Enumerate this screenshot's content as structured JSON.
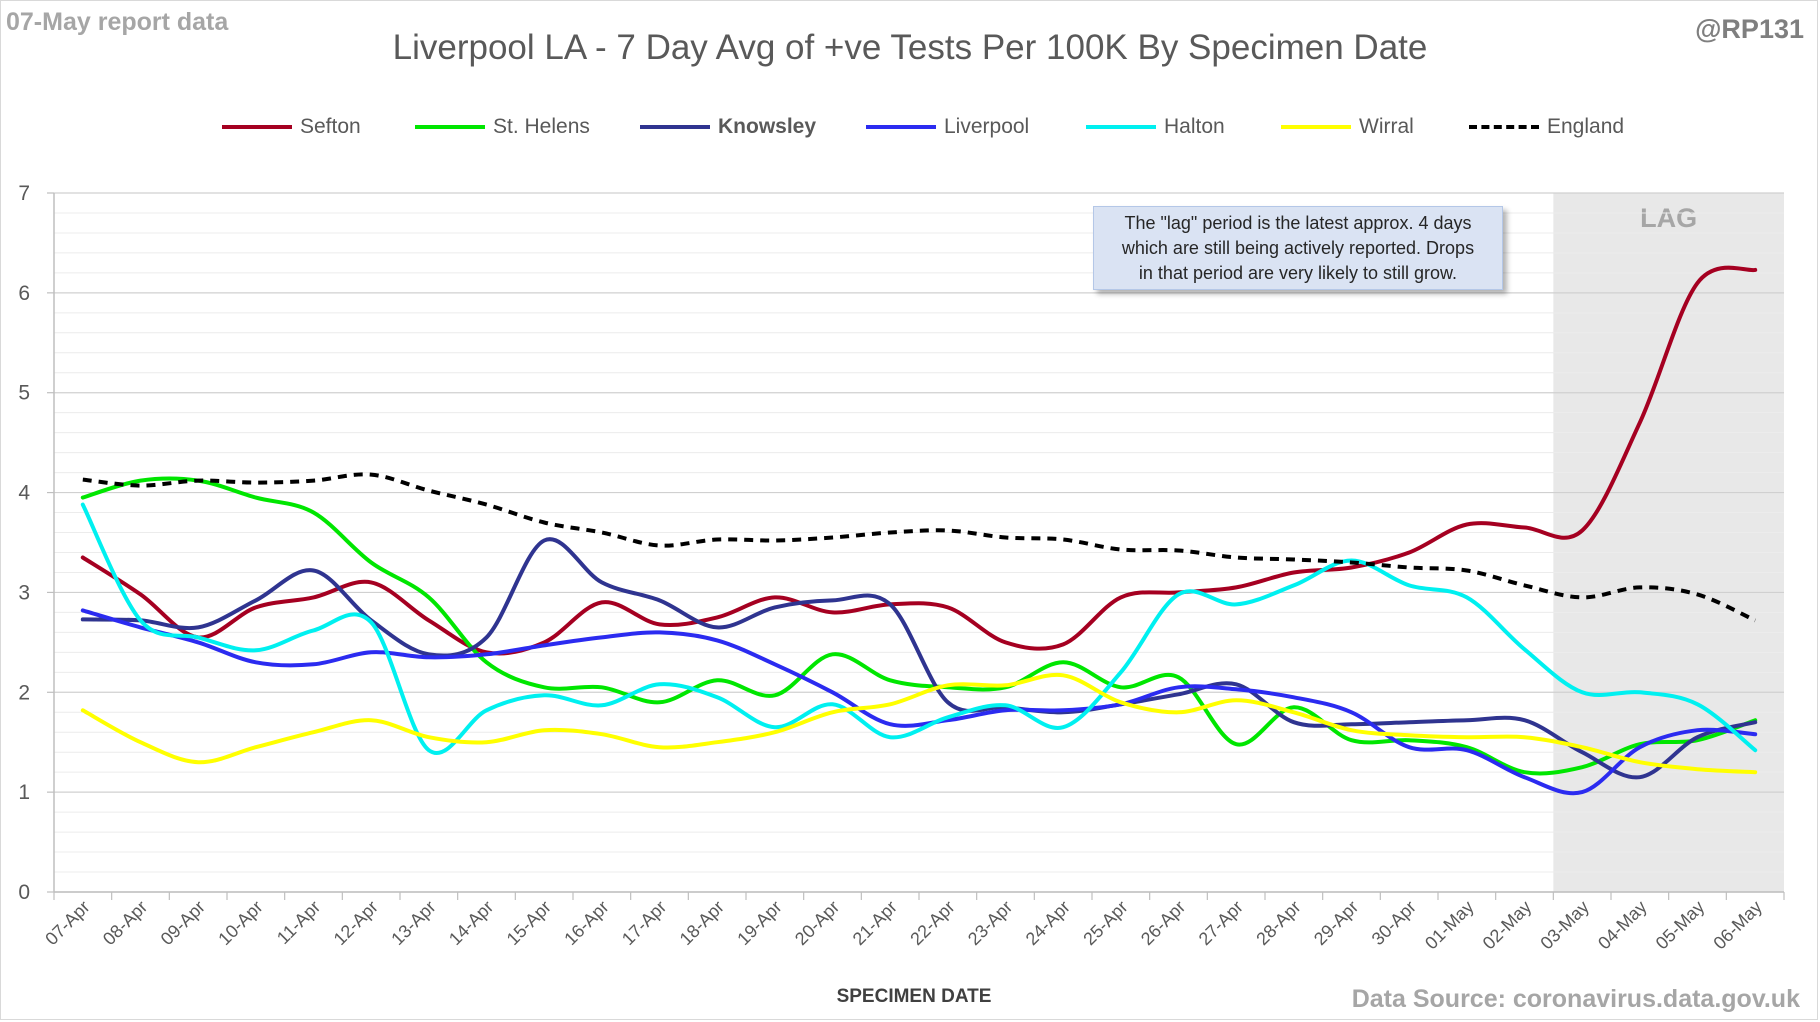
{
  "header": {
    "report_label": "07-May report data",
    "handle": "@RP131",
    "source": "Data Source: coronavirus.data.gov.uk"
  },
  "annotation": {
    "lines": [
      "The \"lag\" period is the latest approx. 4 days",
      "which are still being actively reported.  Drops",
      "in that period are very likely to still grow."
    ]
  },
  "chart_data": {
    "type": "line",
    "title": "Liverpool LA - 7 Day Avg of +ve Tests Per 100K By Specimen Date",
    "xlabel": "SPECIMEN DATE",
    "ylabel": "",
    "ylim": [
      0,
      7
    ],
    "yticks": [
      0,
      1,
      2,
      3,
      4,
      5,
      6,
      7
    ],
    "grid": true,
    "legend_position": "top",
    "shaded_region": {
      "label": "LAG",
      "from": "03-May",
      "to": "06-May",
      "color": "#e8e8e8"
    },
    "categories": [
      "07-Apr",
      "08-Apr",
      "09-Apr",
      "10-Apr",
      "11-Apr",
      "12-Apr",
      "13-Apr",
      "14-Apr",
      "15-Apr",
      "16-Apr",
      "17-Apr",
      "18-Apr",
      "19-Apr",
      "20-Apr",
      "21-Apr",
      "22-Apr",
      "23-Apr",
      "24-Apr",
      "25-Apr",
      "26-Apr",
      "27-Apr",
      "28-Apr",
      "29-Apr",
      "30-Apr",
      "01-May",
      "02-May",
      "03-May",
      "04-May",
      "05-May",
      "06-May"
    ],
    "series": [
      {
        "name": "Sefton",
        "color": "#a50021",
        "dash": false,
        "bold": false,
        "values": [
          3.35,
          2.98,
          2.55,
          2.85,
          2.95,
          3.1,
          2.72,
          2.4,
          2.5,
          2.9,
          2.68,
          2.75,
          2.95,
          2.8,
          2.88,
          2.85,
          2.5,
          2.48,
          2.95,
          3.0,
          3.05,
          3.2,
          3.25,
          3.4,
          3.68,
          3.65,
          3.62,
          4.7,
          6.1,
          6.23
        ]
      },
      {
        "name": "St. Helens",
        "color": "#00e600",
        "dash": false,
        "bold": false,
        "values": [
          3.95,
          4.12,
          4.12,
          3.95,
          3.8,
          3.3,
          2.95,
          2.3,
          2.05,
          2.05,
          1.9,
          2.12,
          1.97,
          2.38,
          2.12,
          2.05,
          2.05,
          2.3,
          2.05,
          2.15,
          1.48,
          1.85,
          1.52,
          1.52,
          1.45,
          1.2,
          1.25,
          1.48,
          1.52,
          1.72
        ]
      },
      {
        "name": "Knowsley",
        "color": "#2f3490",
        "dash": false,
        "bold": true,
        "values": [
          2.73,
          2.72,
          2.65,
          2.92,
          3.22,
          2.72,
          2.38,
          2.55,
          3.52,
          3.1,
          2.92,
          2.65,
          2.85,
          2.92,
          2.88,
          1.9,
          1.85,
          1.8,
          1.88,
          1.98,
          2.08,
          1.7,
          1.68,
          1.7,
          1.72,
          1.72,
          1.4,
          1.15,
          1.55,
          1.7
        ]
      },
      {
        "name": "Liverpool",
        "color": "#2b2bf0",
        "dash": false,
        "bold": false,
        "values": [
          2.82,
          2.65,
          2.5,
          2.3,
          2.28,
          2.4,
          2.35,
          2.38,
          2.47,
          2.55,
          2.6,
          2.52,
          2.28,
          2.0,
          1.68,
          1.72,
          1.82,
          1.82,
          1.88,
          2.05,
          2.03,
          1.95,
          1.8,
          1.45,
          1.42,
          1.15,
          1.0,
          1.45,
          1.62,
          1.58
        ]
      },
      {
        "name": "Halton",
        "color": "#00f0f0",
        "dash": false,
        "bold": false,
        "values": [
          3.88,
          2.72,
          2.55,
          2.42,
          2.62,
          2.7,
          1.42,
          1.82,
          1.97,
          1.87,
          2.08,
          1.95,
          1.65,
          1.88,
          1.55,
          1.75,
          1.87,
          1.65,
          2.2,
          2.98,
          2.88,
          3.07,
          3.32,
          3.07,
          2.95,
          2.43,
          2.0,
          2.0,
          1.88,
          1.42
        ]
      },
      {
        "name": "Wirral",
        "color": "#ffff00",
        "dash": false,
        "bold": false,
        "values": [
          1.82,
          1.5,
          1.3,
          1.45,
          1.6,
          1.72,
          1.55,
          1.5,
          1.62,
          1.58,
          1.45,
          1.5,
          1.6,
          1.8,
          1.88,
          2.07,
          2.07,
          2.17,
          1.9,
          1.8,
          1.92,
          1.8,
          1.62,
          1.57,
          1.55,
          1.55,
          1.45,
          1.3,
          1.23,
          1.2
        ]
      },
      {
        "name": "England",
        "color": "#000000",
        "dash": true,
        "bold": false,
        "values": [
          4.13,
          4.07,
          4.12,
          4.1,
          4.12,
          4.18,
          4.02,
          3.88,
          3.7,
          3.6,
          3.47,
          3.53,
          3.52,
          3.55,
          3.6,
          3.62,
          3.55,
          3.53,
          3.43,
          3.42,
          3.35,
          3.33,
          3.3,
          3.25,
          3.22,
          3.07,
          2.95,
          3.05,
          2.98,
          2.72
        ]
      }
    ]
  }
}
